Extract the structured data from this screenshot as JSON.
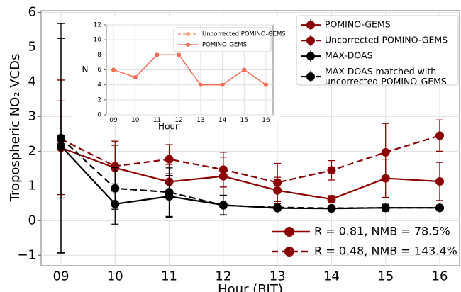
{
  "chart_data": [
    {
      "type": "line",
      "x_label": "Hour (BJT)",
      "y_label": "Tropospheric NO₂ VCDs",
      "categories": [
        "09",
        "10",
        "11",
        "12",
        "13",
        "14",
        "15",
        "16"
      ],
      "ylim": [
        -1.3,
        6.05
      ],
      "yticks": [
        {
          "value": -1,
          "label": "−1"
        },
        0,
        1,
        2,
        3,
        4,
        5,
        6
      ],
      "grid": true,
      "legend": "upper right",
      "series": [
        {
          "name": "POMINO-GEMS",
          "color": "#8b0000",
          "linestyle": "solid",
          "values": [
            2.1,
            1.52,
            1.12,
            1.28,
            0.87,
            0.62,
            1.22,
            1.13
          ],
          "errors": [
            1.35,
            0.65,
            0.5,
            0.55,
            0.38,
            0.1,
            0.55,
            0.55
          ]
        },
        {
          "name": "Uncorrected POMINO-GEMS",
          "color": "#8b0000",
          "linestyle": "dashed",
          "values": [
            2.35,
            1.57,
            1.77,
            1.47,
            1.1,
            1.45,
            1.97,
            2.45
          ],
          "errors": [
            1.7,
            0.72,
            0.42,
            0.5,
            0.55,
            0.28,
            0.83,
            0.45
          ]
        },
        {
          "name": "MAX-DOAS",
          "color": "#000000",
          "linestyle": "solid",
          "values": [
            2.15,
            0.48,
            0.7,
            0.45,
            0.36,
            0.35,
            0.37,
            0.37
          ],
          "errors": [
            3.1,
            0.58,
            0.6,
            0.28,
            0.08,
            0.05,
            0.1,
            0.08
          ]
        },
        {
          "name": "MAX-DOAS matched with\nuncorrected POMINO-GEMS",
          "color": "#000000",
          "linestyle": "dashed",
          "values": [
            2.38,
            0.93,
            0.82,
            0.44,
            0.38,
            0.36,
            0.37,
            0.37
          ],
          "errors": [
            3.3,
            0.6,
            0.7,
            0.28,
            0.06,
            0.05,
            0.1,
            0.08
          ]
        }
      ],
      "annotations": [
        "R = 0.81, NMB = 78.5%",
        "R = 0.48, NMB = 143.4%"
      ],
      "annotation_color": "#c0303a"
    },
    {
      "type": "line",
      "x_label": "Hour",
      "y_label": "N",
      "categories": [
        "09",
        "10",
        "11",
        "12",
        "13",
        "14",
        "15",
        "16"
      ],
      "ylim": [
        0,
        12
      ],
      "yticks": [
        0,
        2,
        4,
        6,
        8,
        10,
        12
      ],
      "grid": true,
      "legend": "upper right",
      "series": [
        {
          "name": "Uncorrected POMINO-GEMS",
          "color": "#f8a682",
          "linestyle": "dashed",
          "values": [
            6,
            5,
            8,
            8,
            4,
            4,
            6,
            4
          ]
        },
        {
          "name": "POMINO-GEMS",
          "color": "#f26b55",
          "linestyle": "solid",
          "values": [
            6,
            5,
            8,
            8,
            4,
            4,
            6,
            4
          ]
        }
      ]
    }
  ]
}
